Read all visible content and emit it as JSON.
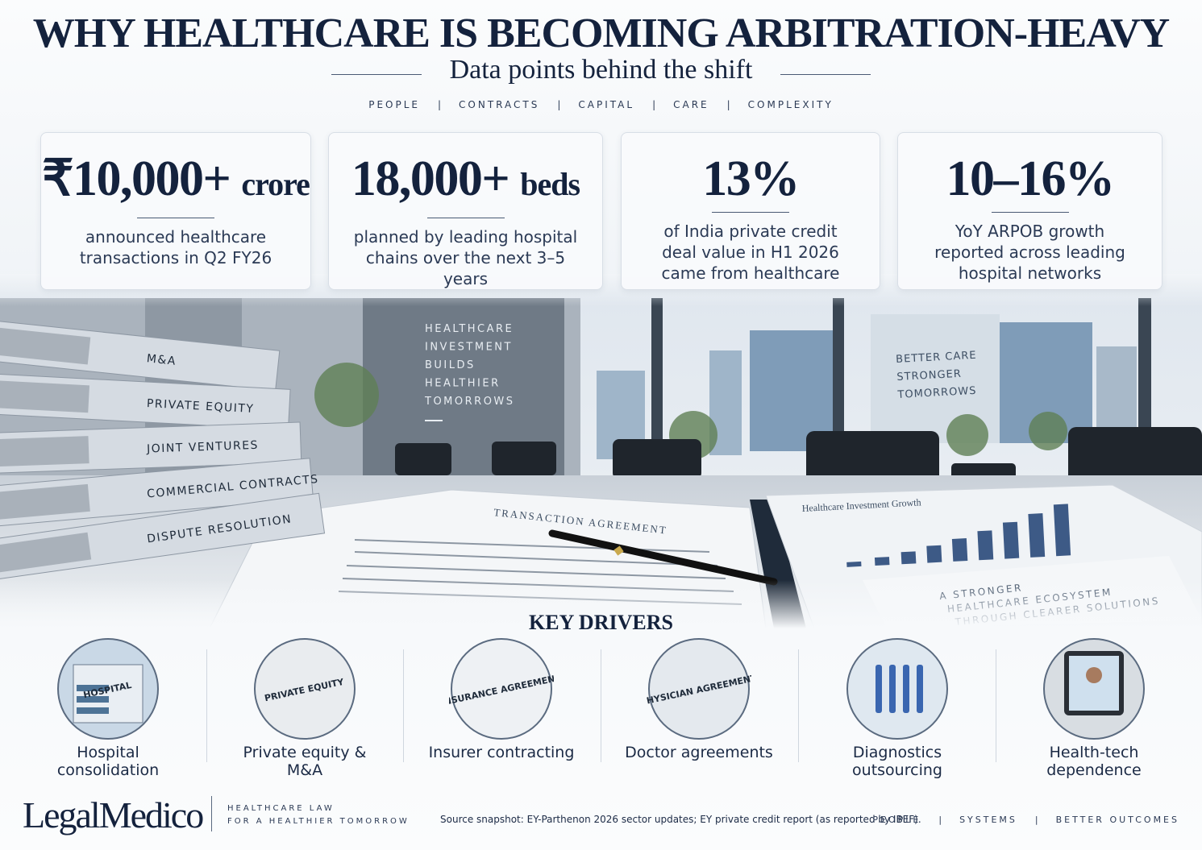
{
  "header": {
    "title": "WHY HEALTHCARE IS BECOMING ARBITRATION-HEAVY",
    "subtitle": "Data points behind the shift",
    "tags": [
      "PEOPLE",
      "CONTRACTS",
      "CAPITAL",
      "CARE",
      "COMPLEXITY"
    ]
  },
  "stats": [
    {
      "value": "₹10,000+",
      "unit": "crore",
      "description": "announced healthcare transactions in Q2 FY26"
    },
    {
      "value": "18,000+",
      "unit": "beds",
      "description": "planned by leading hospital chains over the next 3–5 years"
    },
    {
      "value": "13%",
      "description": "of India private credit deal value in H1 2026 came from healthcare"
    },
    {
      "value": "10–16%",
      "description": "YoY ARPOB growth reported across leading hospital networks"
    }
  ],
  "scene": {
    "binders": [
      "M&A",
      "PRIVATE EQUITY",
      "JOINT VENTURES",
      "COMMERCIAL CONTRACTS",
      "DISPUTE RESOLUTION"
    ],
    "wall_sign": [
      "HEALTHCARE",
      "INVESTMENT",
      "BUILDS",
      "HEALTHIER",
      "TOMORROWS"
    ],
    "building_sign": [
      "BETTER CARE",
      "STRONGER",
      "TOMORROWS"
    ],
    "document": "TRANSACTION AGREEMENT",
    "chart_title": "Healthcare Investment Growth",
    "note": [
      "A STRONGER",
      "HEALTHCARE ECOSYSTEM",
      "THROUGH CLEARER SOLUTIONS"
    ]
  },
  "drivers": {
    "title": "KEY DRIVERS",
    "items": [
      {
        "icon": "HOSPITAL",
        "label": "Hospital consolidation"
      },
      {
        "icon": "PRIVATE EQUITY",
        "label": "Private equity & M&A"
      },
      {
        "icon": "INSURANCE AGREEMENT",
        "label": "Insurer contracting"
      },
      {
        "icon": "PHYSICIAN AGREEMENT",
        "label": "Doctor agreements"
      },
      {
        "label": "Diagnostics outsourcing"
      },
      {
        "label": "Health-tech dependence"
      }
    ]
  },
  "footer": {
    "brand": "LegalMedico",
    "tagline": [
      "HEALTHCARE LAW",
      "FOR A HEALTHIER TOMORROW"
    ],
    "source": "Source snapshot: EY-Parthenon 2026 sector updates; EY private credit report (as reported by IBEF).",
    "tags": [
      "PEOPLE",
      "SYSTEMS",
      "BETTER OUTCOMES"
    ]
  }
}
